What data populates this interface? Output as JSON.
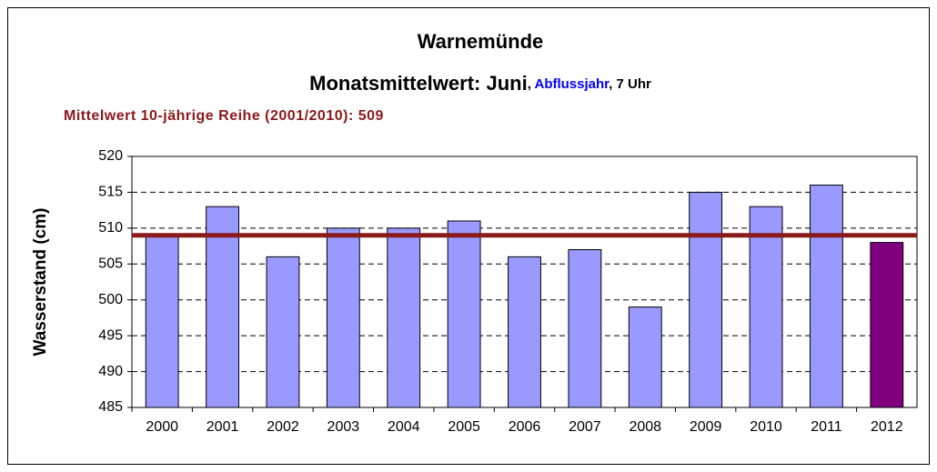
{
  "chart_data": {
    "type": "bar",
    "title": "Warnemünde",
    "subtitle": [
      {
        "text": "Monatsmittelwert: Juni",
        "color": "#000000",
        "size": 22
      },
      {
        "text": ", ",
        "color": "#000000",
        "size": 15
      },
      {
        "text": "Abflussjahr",
        "color": "#0000ff",
        "size": 15
      },
      {
        "text": ", 7 Uhr",
        "color": "#000000",
        "size": 15
      }
    ],
    "mean_line": {
      "label": "Mittelwert 10-jährige Reihe (2001/2010): 509",
      "value": 509,
      "color": "#8b1a1a"
    },
    "y_label": "Wasserstand (cm)",
    "categories": [
      "2000",
      "2001",
      "2002",
      "2003",
      "2004",
      "2005",
      "2006",
      "2007",
      "2008",
      "2009",
      "2010",
      "2011",
      "2012"
    ],
    "values": [
      509,
      513,
      506,
      510,
      510,
      511,
      506,
      507,
      499,
      515,
      513,
      516,
      508
    ],
    "colors": [
      "#9999ff",
      "#9999ff",
      "#9999ff",
      "#9999ff",
      "#9999ff",
      "#9999ff",
      "#9999ff",
      "#9999ff",
      "#9999ff",
      "#9999ff",
      "#9999ff",
      "#9999ff",
      "#800080"
    ],
    "ylim": [
      485,
      520
    ],
    "yticks": [
      485,
      490,
      495,
      500,
      505,
      510,
      515,
      520
    ],
    "grid": true
  }
}
